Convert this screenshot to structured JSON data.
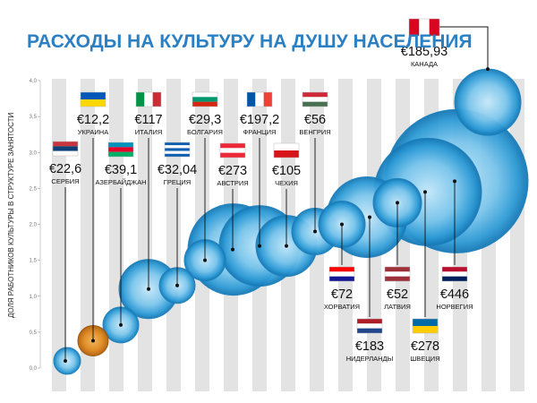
{
  "chart_data": {
    "type": "bubble",
    "title": "РАСХОДЫ НА КУЛЬТУРУ НА ДУШУ НАСЕЛЕНИЯ",
    "ylabel": "ДОЛЯ РАБОТНИКОВ КУЛЬТУРЫ В СТРУКТУРЕ ЗАНЯТОСТИ",
    "ylim": [
      0,
      4
    ],
    "yticks": [
      "0,0",
      "0,5",
      "1,0",
      "1,5",
      "2,0",
      "2,5",
      "3,0",
      "3,5",
      "4,0"
    ],
    "grid": true,
    "size_unit": "€ на душу населения",
    "points": [
      {
        "country": "СЕРБИЯ",
        "value_label": "€22,6",
        "value": 22.6,
        "y": 0.1,
        "highlight": false,
        "flag": [
          "#c6363c",
          "#0c4076",
          "#ffffff"
        ],
        "flag_dir": "h"
      },
      {
        "country": "УКРАИНА",
        "value_label": "€12,2",
        "value": 12.2,
        "y": 0.38,
        "highlight": true,
        "flag": [
          "#0057b7",
          "#ffd700"
        ],
        "flag_dir": "h"
      },
      {
        "country": "АЗЕРБАЙДЖАН",
        "value_label": "€39,1",
        "value": 39.1,
        "y": 0.6,
        "highlight": false,
        "flag": [
          "#0092bc",
          "#e4002b",
          "#00af66"
        ],
        "flag_dir": "h"
      },
      {
        "country": "ИТАЛИЯ",
        "value_label": "€117",
        "value": 117,
        "y": 1.1,
        "highlight": false,
        "flag": [
          "#009246",
          "#ffffff",
          "#ce2b37"
        ],
        "flag_dir": "v"
      },
      {
        "country": "ГРЕЦИЯ",
        "value_label": "€32,04",
        "value": 32.04,
        "y": 1.15,
        "highlight": false,
        "flag": [
          "#0d5eaf",
          "#ffffff",
          "#0d5eaf",
          "#ffffff",
          "#0d5eaf"
        ],
        "flag_dir": "h"
      },
      {
        "country": "БОЛГАРИЯ",
        "value_label": "€29,3",
        "value": 29.3,
        "y": 1.5,
        "highlight": false,
        "flag": [
          "#ffffff",
          "#00966e",
          "#d62612"
        ],
        "flag_dir": "h"
      },
      {
        "country": "АВСТРИЯ",
        "value_label": "€273",
        "value": 273,
        "y": 1.65,
        "highlight": false,
        "flag": [
          "#ed2939",
          "#ffffff",
          "#ed2939"
        ],
        "flag_dir": "h"
      },
      {
        "country": "ФРАНЦИЯ",
        "value_label": "€197,2",
        "value": 197.2,
        "y": 1.7,
        "highlight": false,
        "flag": [
          "#0055a4",
          "#ffffff",
          "#ef4135"
        ],
        "flag_dir": "v"
      },
      {
        "country": "ЧЕХИЯ",
        "value_label": "€105",
        "value": 105,
        "y": 1.7,
        "highlight": false,
        "flag": [
          "#ffffff",
          "#d7141a"
        ],
        "flag_dir": "h"
      },
      {
        "country": "ВЕНГРИЯ",
        "value_label": "€56",
        "value": 56,
        "y": 1.9,
        "highlight": false,
        "flag": [
          "#ce2939",
          "#ffffff",
          "#477050"
        ],
        "flag_dir": "h"
      },
      {
        "country": "ХОРВАТИЯ",
        "value_label": "€72",
        "value": 72,
        "y": 2.0,
        "highlight": false,
        "flag": [
          "#ff0000",
          "#ffffff",
          "#171796"
        ],
        "flag_dir": "h"
      },
      {
        "country": "НИДЕРЛАНДЫ",
        "value_label": "€183",
        "value": 183,
        "y": 2.1,
        "highlight": false,
        "flag": [
          "#ae1c28",
          "#ffffff",
          "#21468b"
        ],
        "flag_dir": "h"
      },
      {
        "country": "ЛАТВИЯ",
        "value_label": "€52",
        "value": 52,
        "y": 2.3,
        "highlight": false,
        "flag": [
          "#9e3039",
          "#ffffff",
          "#9e3039"
        ],
        "flag_dir": "h"
      },
      {
        "country": "ШВЕЦИЯ",
        "value_label": "€278",
        "value": 278,
        "y": 2.45,
        "highlight": false,
        "flag": [
          "#006aa7",
          "#fecc00"
        ],
        "flag_dir": "h"
      },
      {
        "country": "НОРВЕГИЯ",
        "value_label": "€446",
        "value": 446,
        "y": 2.6,
        "highlight": false,
        "flag": [
          "#ba0c2f",
          "#ffffff",
          "#00205b"
        ],
        "flag_dir": "h"
      },
      {
        "country": "КАНАДА",
        "value_label": "€185,93",
        "value": 185.93,
        "y": 3.7,
        "highlight": false,
        "flag": [
          "#d80621",
          "#ffffff",
          "#d80621"
        ],
        "flag_dir": "v"
      }
    ]
  },
  "colors": {
    "title": "#2b7fc3",
    "bubble": "#2a9ad6",
    "bubble_highlight": "#d4760e",
    "stripe": "#d9d9d9"
  }
}
